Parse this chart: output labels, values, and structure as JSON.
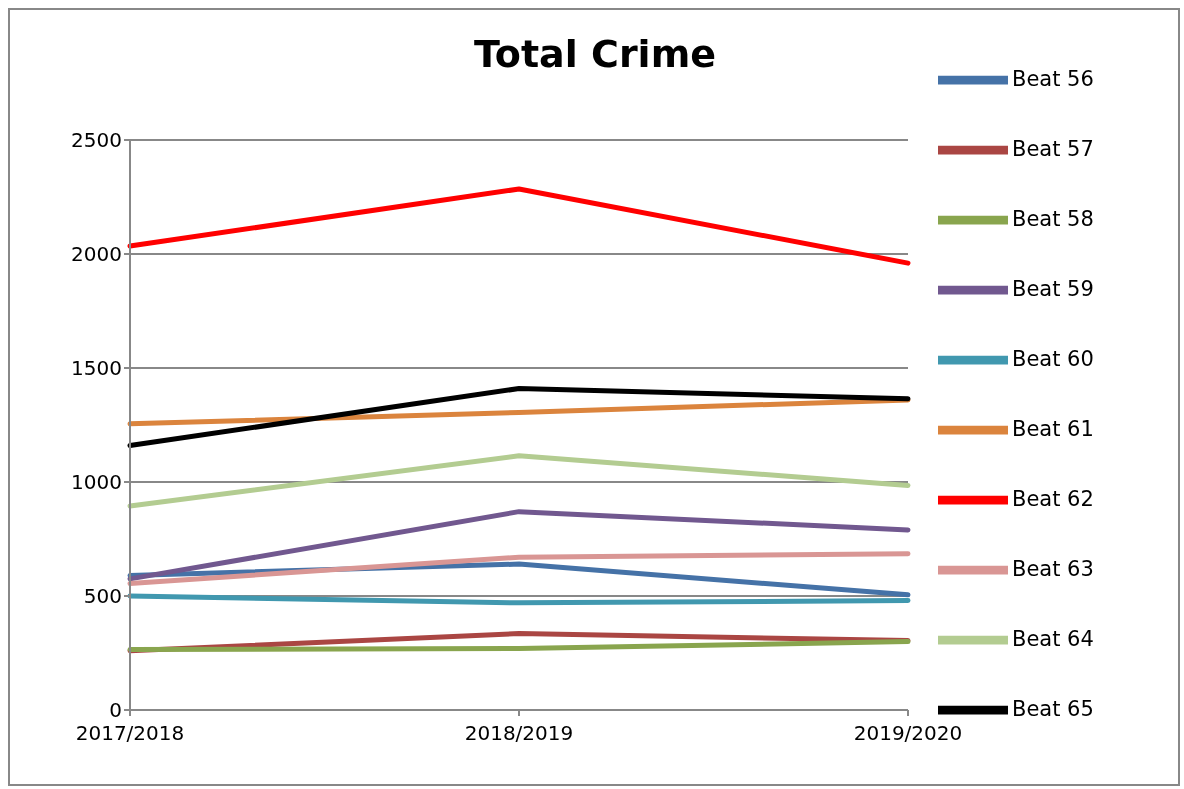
{
  "chart_data": {
    "type": "line",
    "title": "Total Crime",
    "categories": [
      "2017/2018",
      "2018/2019",
      "2019/2020"
    ],
    "series": [
      {
        "name": "Beat 56",
        "color": "#4572a7",
        "values": [
          590,
          640,
          505
        ]
      },
      {
        "name": "Beat 57",
        "color": "#aa4643",
        "values": [
          260,
          335,
          305
        ]
      },
      {
        "name": "Beat 58",
        "color": "#89a54e",
        "values": [
          265,
          270,
          300
        ]
      },
      {
        "name": "Beat 59",
        "color": "#71588f",
        "values": [
          575,
          870,
          790
        ]
      },
      {
        "name": "Beat 60",
        "color": "#4198af",
        "values": [
          500,
          470,
          480
        ]
      },
      {
        "name": "Beat 61",
        "color": "#db843d",
        "values": [
          1255,
          1305,
          1360
        ]
      },
      {
        "name": "Beat 62",
        "color": "#ff0000",
        "values": [
          2035,
          2285,
          1960
        ]
      },
      {
        "name": "Beat 63",
        "color": "#d99694",
        "values": [
          555,
          670,
          685
        ]
      },
      {
        "name": "Beat 64",
        "color": "#b3cc91",
        "values": [
          895,
          1115,
          985
        ]
      },
      {
        "name": "Beat 65",
        "color": "#000000",
        "values": [
          1160,
          1410,
          1365
        ]
      }
    ],
    "ylim": [
      0,
      2500
    ],
    "yticks": [
      0,
      500,
      1000,
      1500,
      2000,
      2500
    ],
    "grid": "y",
    "legend": "right",
    "marker": "none",
    "line_style": "solid"
  }
}
